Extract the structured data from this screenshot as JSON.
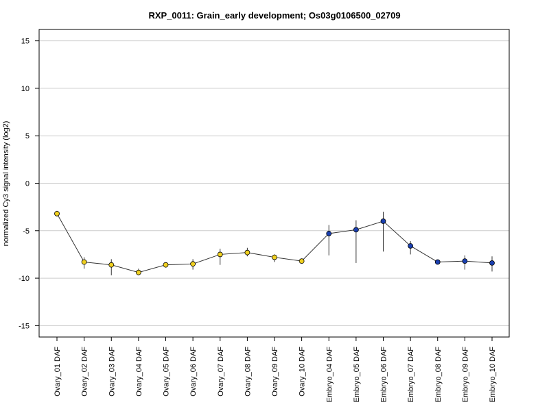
{
  "chart_data": {
    "type": "line",
    "title": "RXP_0011: Grain_early development; Os03g0106500_02709",
    "xlabel": "",
    "ylabel": "normalized Cy3 signal intensity (log2)",
    "ylim": [
      -16.2,
      16.2
    ],
    "yticks": [
      "15",
      "10",
      "5",
      "0",
      "-5",
      "-10",
      "-15"
    ],
    "ytick_values": [
      15,
      10,
      5,
      0,
      -5,
      -10,
      -15
    ],
    "grid": true,
    "categories": [
      "Ovary_01 DAF",
      "Ovary_02 DAF",
      "Ovary_03 DAF",
      "Ovary_04 DAF",
      "Ovary_05 DAF",
      "Ovary_06 DAF",
      "Ovary_07 DAF",
      "Ovary_08 DAF",
      "Ovary_09 DAF",
      "Ovary_10 DAF",
      "Embryo_04 DAF",
      "Embryo_05 DAF",
      "Embryo_06 DAF",
      "Embryo_07 DAF",
      "Embryo_08 DAF",
      "Embryo_09 DAF",
      "Embryo_10 DAF"
    ],
    "series": [
      {
        "values": [
          -3.2,
          -8.3,
          -8.6,
          -9.4,
          -8.6,
          -8.5,
          -7.5,
          -7.3,
          -7.8,
          -8.2,
          -5.3,
          -4.9,
          -4.0,
          -6.6,
          -8.3,
          -8.2,
          -8.4
        ],
        "err_low": [
          -3.5,
          -9.0,
          -9.7,
          -9.7,
          -8.8,
          -9.1,
          -8.6,
          -7.7,
          -8.3,
          -8.3,
          -7.6,
          -8.4,
          -7.2,
          -7.5,
          -8.4,
          -9.1,
          -9.3
        ],
        "err_high": [
          -2.9,
          -7.8,
          -8.0,
          -9.0,
          -8.4,
          -8.0,
          -6.9,
          -6.8,
          -7.5,
          -8.0,
          -4.4,
          -3.9,
          -3.0,
          -6.1,
          -8.2,
          -7.6,
          -7.7
        ],
        "colors": [
          "#f0d020",
          "#f0d020",
          "#f0d020",
          "#f0d020",
          "#f0d020",
          "#f0d020",
          "#f0d020",
          "#f0d020",
          "#f0d020",
          "#f0d020",
          "#1a3fb0",
          "#1a3fb0",
          "#1a3fb0",
          "#1a3fb0",
          "#1a3fb0",
          "#1a3fb0",
          "#1a3fb0"
        ]
      }
    ],
    "colors": {
      "ovary": "#f0d020",
      "embryo": "#1a3fb0",
      "line": "#333333",
      "grid": "#cccccc"
    }
  }
}
